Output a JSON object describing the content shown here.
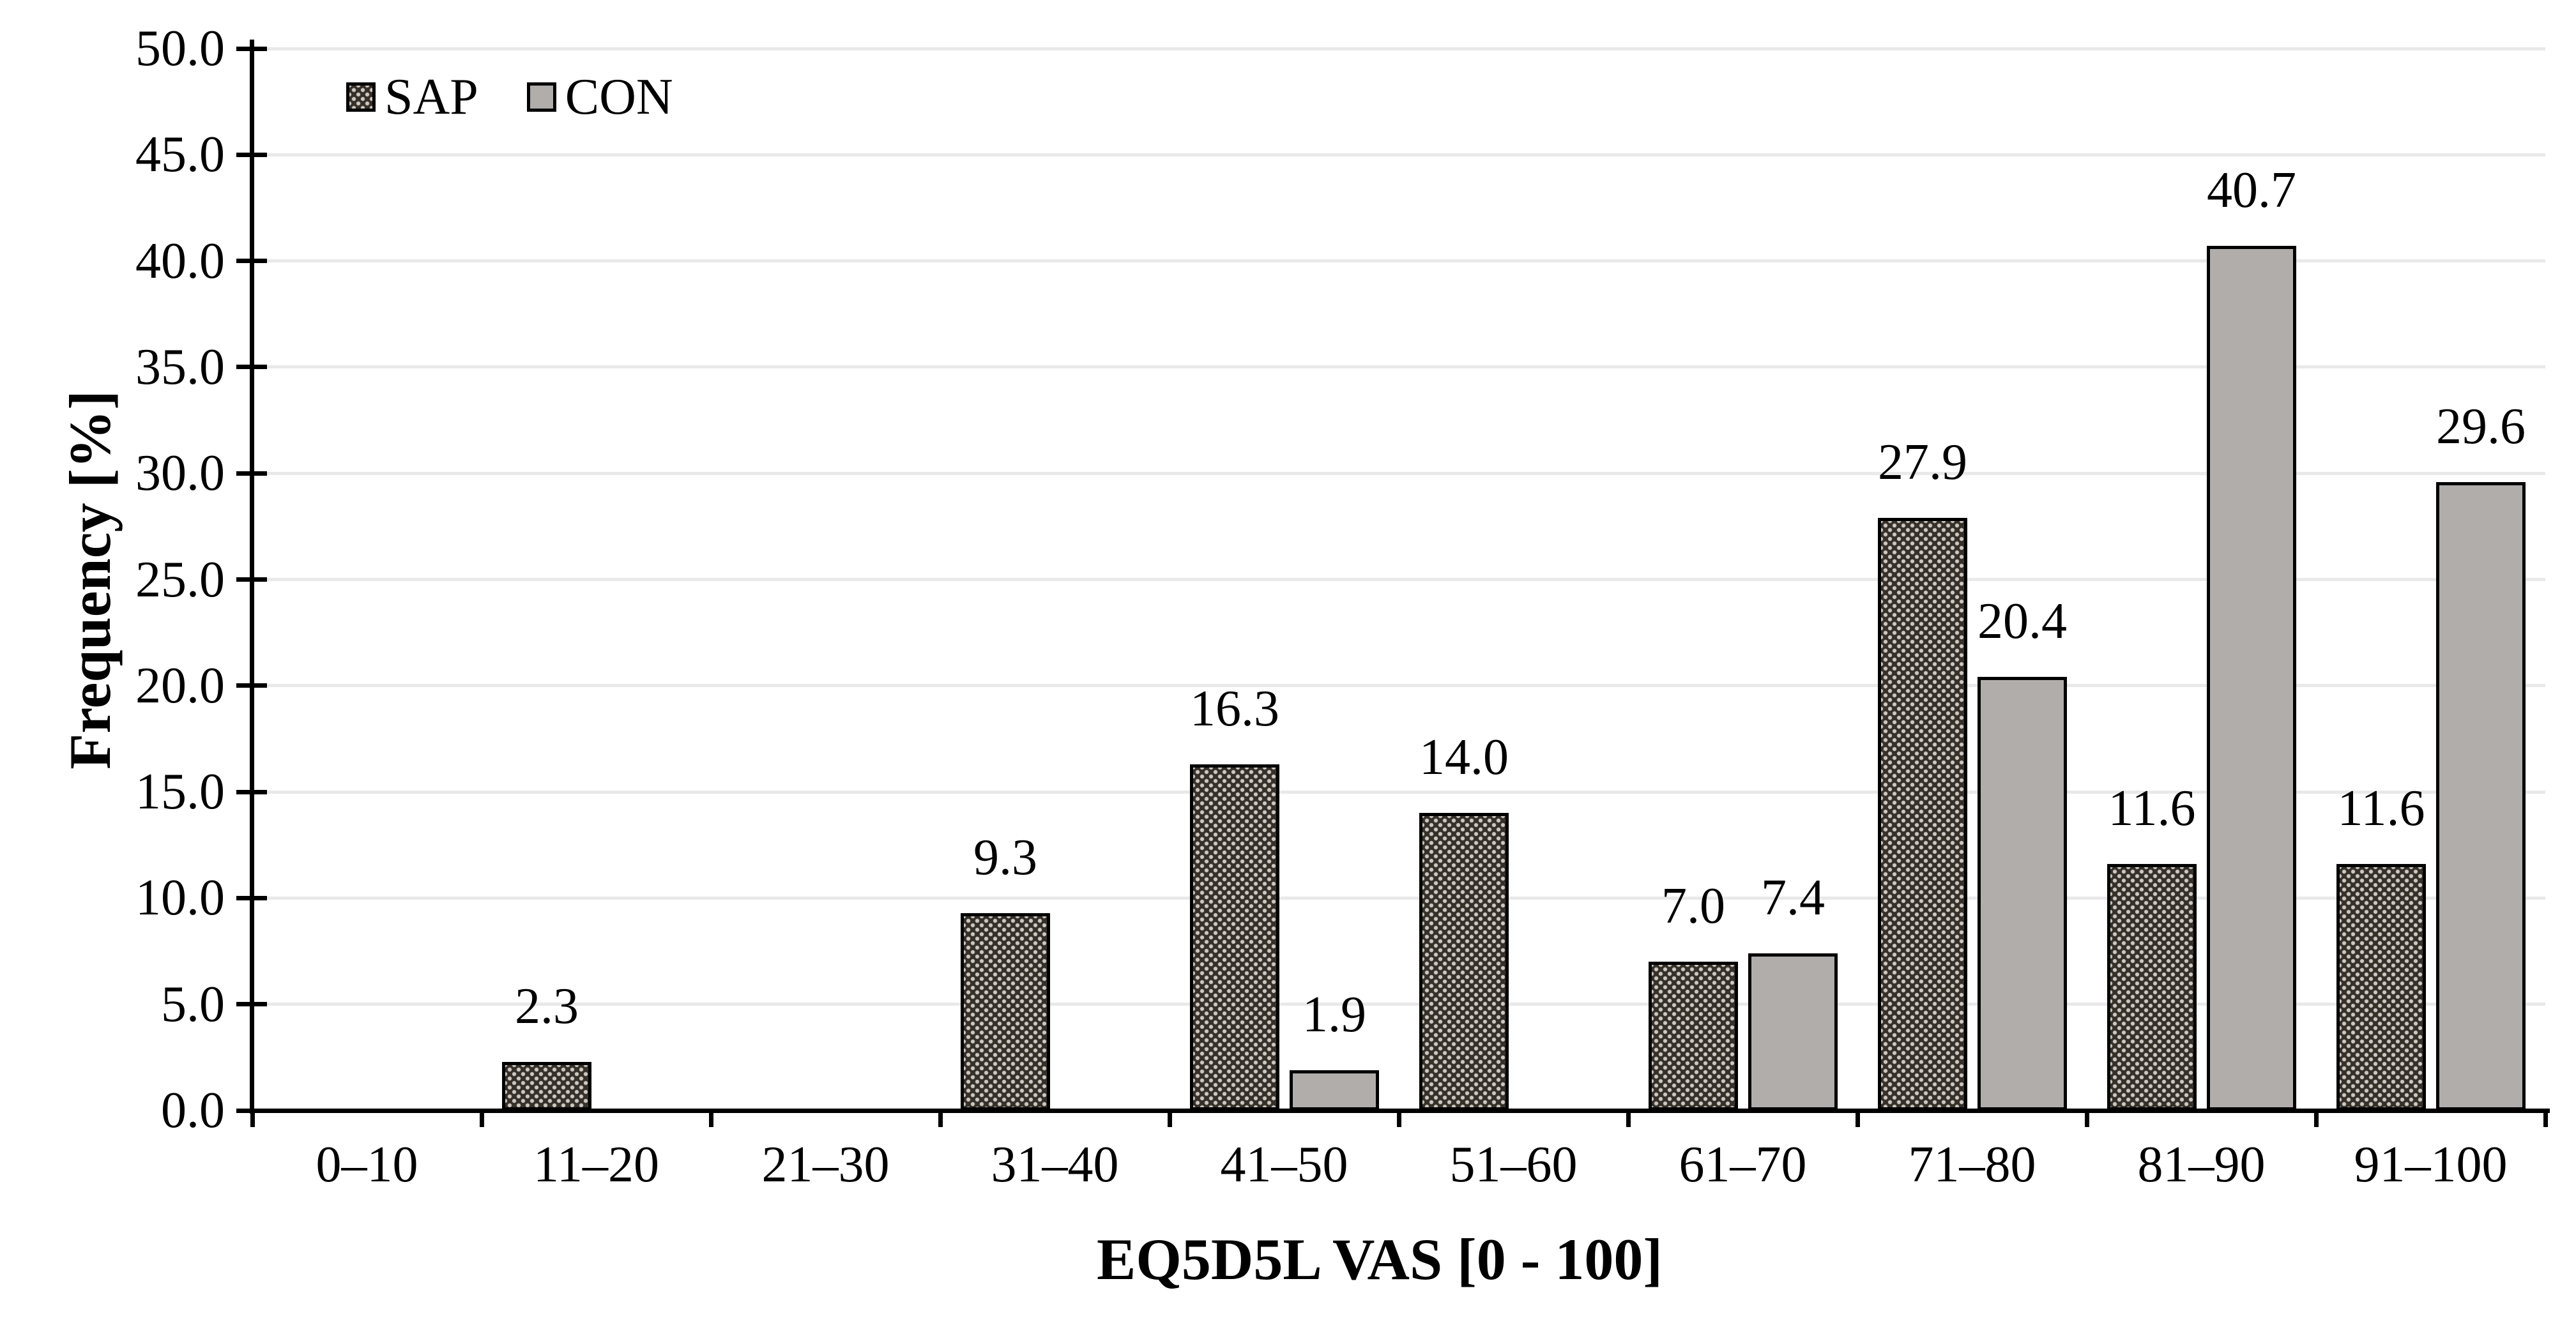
{
  "chart_data": {
    "type": "bar",
    "title": "",
    "xlabel": "EQ5D5L VAS [0 - 100]",
    "ylabel": "Frequency [%]",
    "categories": [
      "0–10",
      "11–20",
      "21–30",
      "31–40",
      "41–50",
      "51–60",
      "61–70",
      "71–80",
      "81–90",
      "91–100"
    ],
    "series": [
      {
        "name": "SAP",
        "values": [
          0,
          2.3,
          0,
          9.3,
          16.3,
          14.0,
          7.0,
          27.9,
          11.6,
          11.6
        ],
        "fill": "#353028",
        "pattern": "diagonal-dot-lattice",
        "pattern_dot_color": "#cdc8c3"
      },
      {
        "name": "CON",
        "values": [
          0,
          0,
          0,
          0,
          1.9,
          0,
          7.4,
          20.4,
          40.7,
          29.6
        ],
        "fill": "#b1adaa",
        "pattern": "solid"
      }
    ],
    "ylim": [
      0,
      50
    ],
    "ytick_step": 5,
    "ytick_labels": [
      "0.0",
      "5.0",
      "10.0",
      "15.0",
      "20.0",
      "25.0",
      "30.0",
      "35.0",
      "40.0",
      "45.0",
      "50.0"
    ],
    "value_label_decimals": 1,
    "value_labels_shown_only_for_nonzero": true,
    "grid": "horizontal",
    "legend_position": "top-left",
    "colors": {
      "axis": "#000000",
      "gridline": "#e9e9e9",
      "background": "#ffffff",
      "text": "#000000",
      "bar_border": "#000000"
    }
  }
}
